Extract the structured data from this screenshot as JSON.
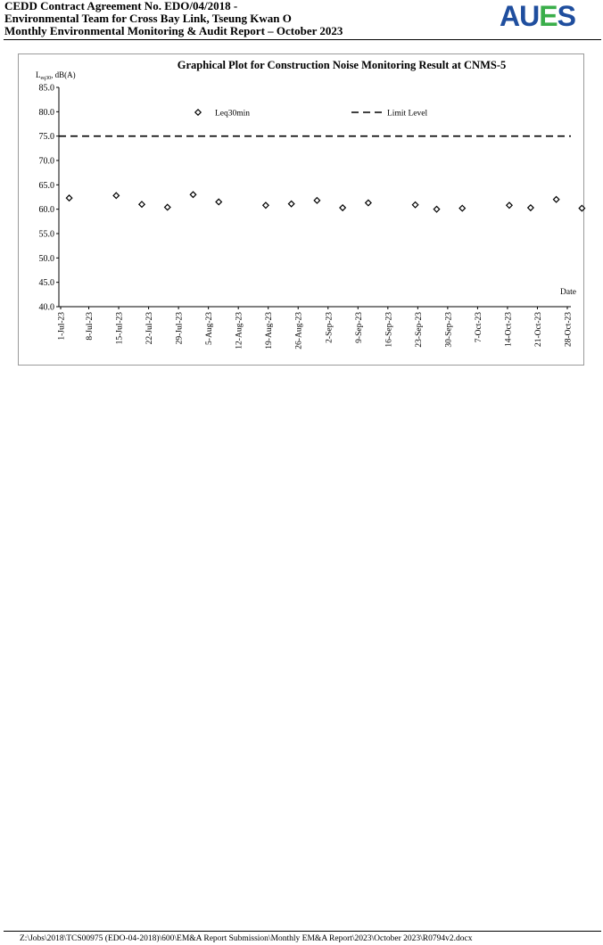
{
  "header": {
    "line1": "CEDD Contract Agreement No. EDO/04/2018 -",
    "line2": "Environmental Team for Cross Bay Link, Tseung Kwan O",
    "line3": "Monthly Environmental Monitoring & Audit Report – October 2023"
  },
  "logo": {
    "text": "AUES",
    "colors": [
      "#1f4e9e",
      "#1f4e9e",
      "#3aae4a",
      "#1f4e9e"
    ]
  },
  "footer": {
    "path": "Z:\\Jobs\\2018\\TCS00975 (EDO-04-2018)\\600\\EM&A Report Submission\\Monthly EM&A Report\\2023\\October 2023\\R0794v2.docx"
  },
  "chart_data": {
    "type": "scatter",
    "title": "Graphical Plot for Construction Noise Monitoring Result at CNMS-5",
    "ylabel_main": "L",
    "ylabel_sub": "eq30",
    "ylabel_rest": ", dB(A)",
    "xlabel": "Date",
    "ylim": [
      40,
      85
    ],
    "yticks": [
      "40.0",
      "45.0",
      "50.0",
      "55.0",
      "60.0",
      "65.0",
      "70.0",
      "75.0",
      "80.0",
      "85.0"
    ],
    "xticks": [
      "1-Jul-23",
      "8-Jul-23",
      "15-Jul-23",
      "22-Jul-23",
      "29-Jul-23",
      "5-Aug-23",
      "12-Aug-23",
      "19-Aug-23",
      "26-Aug-23",
      "2-Sep-23",
      "9-Sep-23",
      "16-Sep-23",
      "23-Sep-23",
      "30-Sep-23",
      "7-Oct-23",
      "14-Oct-23",
      "21-Oct-23",
      "28-Oct-23"
    ],
    "grid": false,
    "legend": [
      "Leq30min",
      "Limit Level"
    ],
    "series": [
      {
        "name": "Leq30min",
        "marker": "diamond",
        "points": [
          {
            "x": "2023-07-03",
            "y": 62.3
          },
          {
            "x": "2023-07-14",
            "y": 62.8
          },
          {
            "x": "2023-07-20",
            "y": 61.0
          },
          {
            "x": "2023-07-26",
            "y": 60.4
          },
          {
            "x": "2023-08-01",
            "y": 63.0
          },
          {
            "x": "2023-08-07",
            "y": 61.5
          },
          {
            "x": "2023-08-18",
            "y": 60.8
          },
          {
            "x": "2023-08-24",
            "y": 61.1
          },
          {
            "x": "2023-08-30",
            "y": 61.8
          },
          {
            "x": "2023-09-05",
            "y": 60.3
          },
          {
            "x": "2023-09-11",
            "y": 61.3
          },
          {
            "x": "2023-09-22",
            "y": 60.9
          },
          {
            "x": "2023-09-27",
            "y": 60.0
          },
          {
            "x": "2023-10-03",
            "y": 60.2
          },
          {
            "x": "2023-10-14",
            "y": 60.8
          },
          {
            "x": "2023-10-19",
            "y": 60.3
          },
          {
            "x": "2023-10-25",
            "y": 62.0
          },
          {
            "x": "2023-10-31",
            "y": 60.2
          }
        ]
      },
      {
        "name": "Limit Level",
        "style": "dashed",
        "y": 75.0
      }
    ]
  }
}
